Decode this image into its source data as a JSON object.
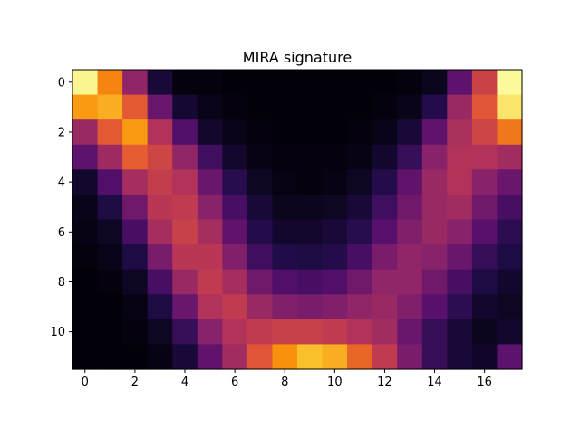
{
  "chart_data": {
    "type": "heatmap",
    "title": "MIRA signature",
    "xlabel": "",
    "ylabel": "",
    "colormap": "inferno",
    "vmin": 0,
    "vmax": 1,
    "x_ticks": [
      0,
      2,
      4,
      6,
      8,
      10,
      12,
      14,
      16
    ],
    "y_ticks": [
      0,
      2,
      4,
      6,
      8,
      10
    ],
    "x_tick_labels": [
      "0",
      "2",
      "4",
      "6",
      "8",
      "10",
      "12",
      "14",
      "16"
    ],
    "y_tick_labels": [
      "0",
      "2",
      "4",
      "6",
      "8",
      "10"
    ],
    "grid": false,
    "legend": "none",
    "values": [
      [
        0.98,
        0.73,
        0.4,
        0.1,
        0.02,
        0.02,
        0.01,
        0.01,
        0.01,
        0.01,
        0.01,
        0.01,
        0.01,
        0.02,
        0.05,
        0.27,
        0.55,
        0.99
      ],
      [
        0.78,
        0.82,
        0.63,
        0.3,
        0.09,
        0.04,
        0.02,
        0.01,
        0.01,
        0.01,
        0.01,
        0.01,
        0.02,
        0.04,
        0.14,
        0.42,
        0.62,
        0.94
      ],
      [
        0.42,
        0.63,
        0.78,
        0.48,
        0.24,
        0.08,
        0.04,
        0.02,
        0.01,
        0.01,
        0.01,
        0.02,
        0.04,
        0.1,
        0.28,
        0.46,
        0.56,
        0.7
      ],
      [
        0.27,
        0.43,
        0.64,
        0.56,
        0.4,
        0.2,
        0.08,
        0.03,
        0.02,
        0.02,
        0.02,
        0.03,
        0.08,
        0.18,
        0.38,
        0.48,
        0.48,
        0.44
      ],
      [
        0.08,
        0.24,
        0.45,
        0.53,
        0.48,
        0.3,
        0.15,
        0.06,
        0.03,
        0.02,
        0.03,
        0.06,
        0.14,
        0.28,
        0.42,
        0.48,
        0.38,
        0.3
      ],
      [
        0.04,
        0.12,
        0.32,
        0.5,
        0.52,
        0.38,
        0.22,
        0.1,
        0.05,
        0.05,
        0.06,
        0.1,
        0.2,
        0.32,
        0.42,
        0.44,
        0.32,
        0.22
      ],
      [
        0.03,
        0.06,
        0.22,
        0.45,
        0.54,
        0.45,
        0.28,
        0.14,
        0.08,
        0.08,
        0.1,
        0.15,
        0.26,
        0.36,
        0.42,
        0.38,
        0.26,
        0.16
      ],
      [
        0.02,
        0.04,
        0.12,
        0.34,
        0.5,
        0.5,
        0.36,
        0.2,
        0.13,
        0.12,
        0.14,
        0.22,
        0.34,
        0.4,
        0.38,
        0.3,
        0.18,
        0.12
      ],
      [
        0.01,
        0.02,
        0.06,
        0.22,
        0.42,
        0.52,
        0.45,
        0.32,
        0.24,
        0.22,
        0.24,
        0.32,
        0.4,
        0.4,
        0.32,
        0.22,
        0.12,
        0.08
      ],
      [
        0.01,
        0.01,
        0.03,
        0.12,
        0.3,
        0.48,
        0.52,
        0.42,
        0.36,
        0.34,
        0.36,
        0.4,
        0.42,
        0.36,
        0.26,
        0.16,
        0.08,
        0.06
      ],
      [
        0.01,
        0.01,
        0.02,
        0.06,
        0.18,
        0.38,
        0.48,
        0.52,
        0.54,
        0.54,
        0.52,
        0.48,
        0.44,
        0.3,
        0.18,
        0.1,
        0.05,
        0.08
      ],
      [
        0.01,
        0.01,
        0.01,
        0.03,
        0.1,
        0.28,
        0.44,
        0.62,
        0.76,
        0.86,
        0.82,
        0.66,
        0.52,
        0.34,
        0.18,
        0.1,
        0.07,
        0.27
      ]
    ]
  }
}
